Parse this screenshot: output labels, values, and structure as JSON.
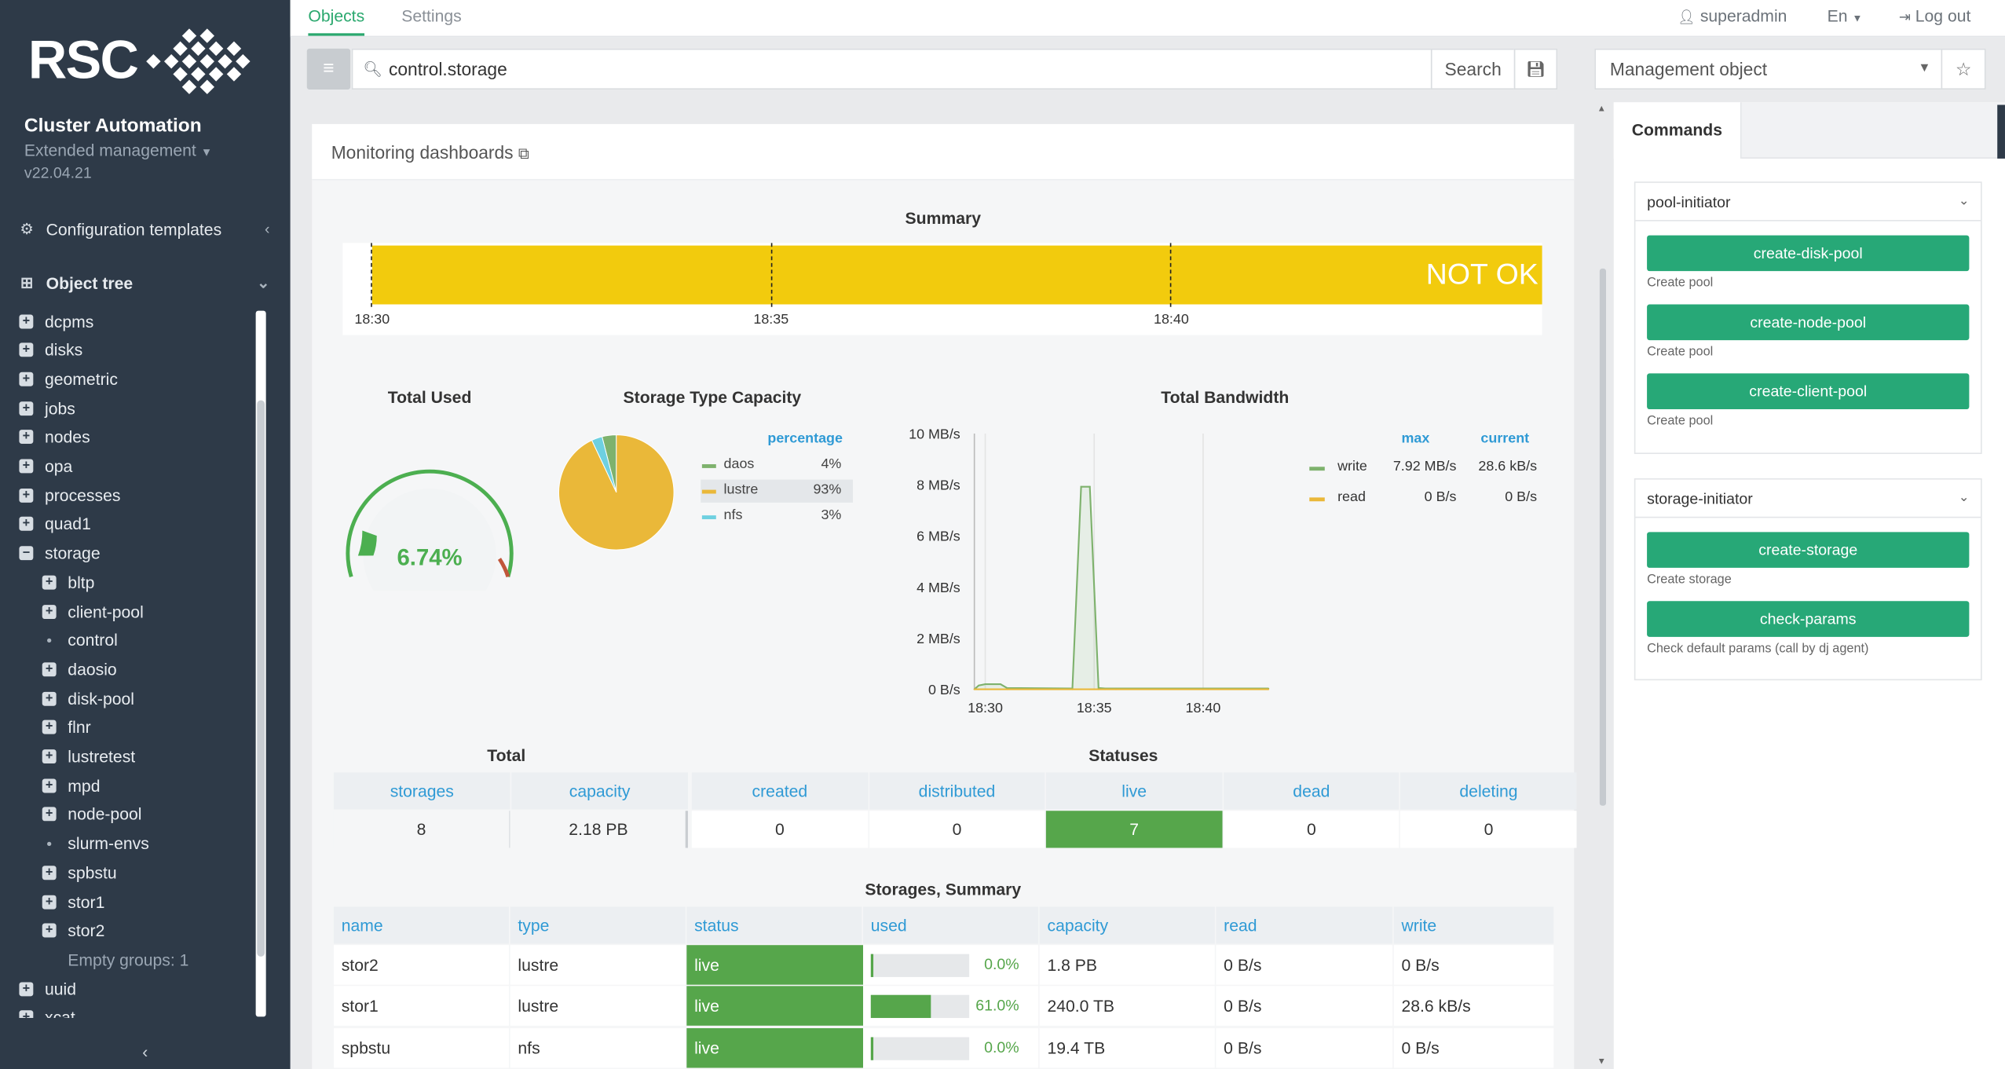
{
  "sidebar": {
    "logo_text": "RSC",
    "app_title": "Cluster Automation",
    "mode": "Extended management",
    "version": "v22.04.21",
    "config_templates": "Configuration templates",
    "object_tree": "Object tree",
    "tree": [
      {
        "label": "dcpms",
        "level": 0,
        "kind": "plus"
      },
      {
        "label": "disks",
        "level": 0,
        "kind": "plus"
      },
      {
        "label": "geometric",
        "level": 0,
        "kind": "plus"
      },
      {
        "label": "jobs",
        "level": 0,
        "kind": "plus"
      },
      {
        "label": "nodes",
        "level": 0,
        "kind": "plus"
      },
      {
        "label": "opa",
        "level": 0,
        "kind": "plus"
      },
      {
        "label": "processes",
        "level": 0,
        "kind": "plus"
      },
      {
        "label": "quad1",
        "level": 0,
        "kind": "plus"
      },
      {
        "label": "storage",
        "level": 0,
        "kind": "minus"
      },
      {
        "label": "bltp",
        "level": 1,
        "kind": "plus"
      },
      {
        "label": "client-pool",
        "level": 1,
        "kind": "plus"
      },
      {
        "label": "control",
        "level": 1,
        "kind": "dot"
      },
      {
        "label": "daosio",
        "level": 1,
        "kind": "plus"
      },
      {
        "label": "disk-pool",
        "level": 1,
        "kind": "plus"
      },
      {
        "label": "flnr",
        "level": 1,
        "kind": "plus"
      },
      {
        "label": "lustretest",
        "level": 1,
        "kind": "plus"
      },
      {
        "label": "mpd",
        "level": 1,
        "kind": "plus"
      },
      {
        "label": "node-pool",
        "level": 1,
        "kind": "plus"
      },
      {
        "label": "slurm-envs",
        "level": 1,
        "kind": "dot"
      },
      {
        "label": "spbstu",
        "level": 1,
        "kind": "plus"
      },
      {
        "label": "stor1",
        "level": 1,
        "kind": "plus"
      },
      {
        "label": "stor2",
        "level": 1,
        "kind": "plus"
      },
      {
        "label": "Empty groups: 1",
        "level": 1,
        "kind": "none"
      },
      {
        "label": "uuid",
        "level": 0,
        "kind": "plus"
      },
      {
        "label": "xcat",
        "level": 0,
        "kind": "plus"
      }
    ]
  },
  "topbar": {
    "tab_objects": "Objects",
    "tab_settings": "Settings",
    "user": "superadmin",
    "lang": "En",
    "logout": "Log out"
  },
  "search": {
    "query": "control.storage",
    "button": "Search",
    "object_select": "Management object"
  },
  "panel": {
    "title": "Monitoring dashboards"
  },
  "summary": {
    "title": "Summary",
    "status_text": "NOT OK",
    "status_color": "#f2cb0d",
    "ticks": [
      "18:30",
      "18:35",
      "18:40"
    ]
  },
  "total_used": {
    "title": "Total Used",
    "value_text": "6.74%",
    "value": 6.74,
    "color": "#4caf50"
  },
  "storage_type": {
    "title": "Storage Type Capacity",
    "legend_header": "percentage",
    "items": [
      {
        "name": "daos",
        "pct": "4%",
        "value": 4,
        "color": "#7eb26d"
      },
      {
        "name": "lustre",
        "pct": "93%",
        "value": 93,
        "color": "#eab839"
      },
      {
        "name": "nfs",
        "pct": "3%",
        "value": 3,
        "color": "#6ed0e0"
      }
    ]
  },
  "chart_data": {
    "type": "line",
    "title": "Total Bandwidth",
    "x_ticks": [
      "18:30",
      "18:35",
      "18:40"
    ],
    "y_ticks": [
      "0 B/s",
      "2 MB/s",
      "4 MB/s",
      "6 MB/s",
      "8 MB/s",
      "10 MB/s"
    ],
    "ylim": [
      0,
      10
    ],
    "y_unit": "MB/s",
    "x_minutes": [
      29.5,
      29.7,
      30.0,
      30.7,
      31.0,
      34.0,
      34.4,
      34.8,
      35.2,
      35.5,
      36.0,
      40.0,
      43.0
    ],
    "legend_headers": [
      "max",
      "current"
    ],
    "series": [
      {
        "name": "write",
        "color": "#7eb26d",
        "max": "7.92 MB/s",
        "current": "28.6 kB/s",
        "values": [
          0.0,
          0.15,
          0.2,
          0.2,
          0.05,
          0.03,
          7.92,
          7.92,
          0.05,
          0.03,
          0.03,
          0.03,
          0.03
        ]
      },
      {
        "name": "read",
        "color": "#eab839",
        "max": "0 B/s",
        "current": "0 B/s",
        "values": [
          0,
          0,
          0,
          0,
          0,
          0,
          0,
          0,
          0,
          0,
          0,
          0,
          0
        ]
      }
    ]
  },
  "totals": {
    "title": "Total",
    "headers": [
      "storages",
      "capacity"
    ],
    "values": [
      "8",
      "2.18 PB"
    ]
  },
  "statuses": {
    "title": "Statuses",
    "headers": [
      "created",
      "distributed",
      "live",
      "dead",
      "deleting"
    ],
    "values": [
      "0",
      "0",
      "7",
      "0",
      "0"
    ],
    "highlight_color": "#56a64b"
  },
  "storages_summary": {
    "title": "Storages, Summary",
    "headers": [
      "name",
      "type",
      "status",
      "used",
      "capacity",
      "read",
      "write"
    ],
    "rows": [
      {
        "name": "stor2",
        "type": "lustre",
        "status": "live",
        "used": "0.0%",
        "used_value": 0.0,
        "capacity": "1.8 PB",
        "read": "0 B/s",
        "write": "0 B/s"
      },
      {
        "name": "stor1",
        "type": "lustre",
        "status": "live",
        "used": "61.0%",
        "used_value": 61.0,
        "capacity": "240.0 TB",
        "read": "0 B/s",
        "write": "28.6 kB/s"
      },
      {
        "name": "spbstu",
        "type": "nfs",
        "status": "live",
        "used": "0.0%",
        "used_value": 0.0,
        "capacity": "19.4 TB",
        "read": "0 B/s",
        "write": "0 B/s"
      }
    ]
  },
  "commands": {
    "tab": "Commands",
    "groups": [
      {
        "name": "pool-initiator",
        "commands": [
          {
            "label": "create-disk-pool",
            "desc": "Create pool"
          },
          {
            "label": "create-node-pool",
            "desc": "Create pool"
          },
          {
            "label": "create-client-pool",
            "desc": "Create pool"
          }
        ]
      },
      {
        "name": "storage-initiator",
        "commands": [
          {
            "label": "create-storage",
            "desc": "Create storage"
          },
          {
            "label": "check-params",
            "desc": "Check default params (call by dj agent)"
          }
        ]
      }
    ]
  },
  "colors": {
    "sidebar_bg": "#2e3a48",
    "accent": "#27a877",
    "link_blue": "#2f9ad5"
  }
}
